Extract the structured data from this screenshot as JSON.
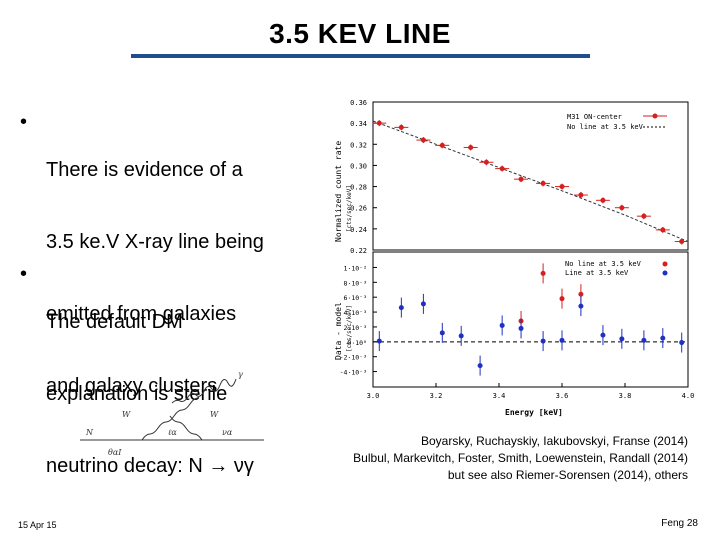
{
  "slide": {
    "title": "3.5 KEV LINE",
    "bullets": [
      {
        "marker": "•",
        "lines": [
          "There is evidence of a",
          "3.5 ke.V X-ray line being",
          "emitted from galaxies",
          "and galaxy clusters"
        ]
      },
      {
        "marker": "•",
        "lines": [
          "The default DM",
          "explanation is sterile",
          "neutrino decay: N → νγ"
        ]
      }
    ],
    "references": [
      "Boyarsky, Ruchayskiy, Iakubovskyi, Franse (2014)",
      "Bulbul, Markevitch, Foster, Smith, Loewenstein, Randall (2014)",
      "but see also Riemer-Sorensen (2014), others"
    ],
    "footer_left": "15 Apr 15",
    "footer_right": "Feng  28"
  },
  "feynman": {
    "labels": {
      "gamma": "γ",
      "w_left": "W",
      "w_right": "W",
      "n_in": "N",
      "l_mid": "ℓα",
      "nu_out": "να",
      "theta": "θαI"
    }
  },
  "chart_data": [
    {
      "type": "scatter",
      "ylabel": "Normalized count rate",
      "ylabel_unit": "[cts/sec/keV]",
      "ylim": [
        0.22,
        0.36
      ],
      "yticks": [
        "0.36",
        "0.34",
        "0.32",
        "0.30",
        "0.28",
        "0.26",
        "0.24",
        "0.22"
      ],
      "legend": [
        "M31 ON-center",
        "No line at 3.5 keV"
      ],
      "legend_placement": "top-right",
      "series": [
        {
          "name": "M31 ON-center",
          "color": "#d62020",
          "x": [
            3.02,
            3.09,
            3.16,
            3.22,
            3.31,
            3.36,
            3.41,
            3.47,
            3.54,
            3.6,
            3.66,
            3.73,
            3.79,
            3.86,
            3.92,
            3.98
          ],
          "y": [
            0.34,
            0.336,
            0.324,
            0.319,
            0.317,
            0.303,
            0.297,
            0.287,
            0.283,
            0.28,
            0.272,
            0.267,
            0.26,
            0.252,
            0.239,
            0.228
          ]
        }
      ],
      "model_curve": {
        "x": [
          3.0,
          3.2,
          3.4,
          3.6,
          3.8,
          4.0
        ],
        "y": [
          0.342,
          0.32,
          0.298,
          0.276,
          0.253,
          0.228
        ]
      }
    },
    {
      "type": "scatter",
      "xlabel": "Energy [keV]",
      "ylabel": "Data - model",
      "ylabel_unit": "[cts/sec/keV]",
      "xlim": [
        3.0,
        4.0
      ],
      "ylim": [
        -0.005,
        0.011
      ],
      "xticks": [
        "3.0",
        "3.2",
        "3.4",
        "3.6",
        "3.8",
        "4.0"
      ],
      "yticks": [
        "1·10⁻²",
        "8·10⁻³",
        "6·10⁻³",
        "4·10⁻³",
        "2·10⁻³",
        "0·10⁰",
        "-2·10⁻³",
        "-4·10⁻³"
      ],
      "legend": [
        "No line at 3.5 keV",
        "Line at 3.5 keV"
      ],
      "legend_placement": "top-right",
      "series": [
        {
          "name": "No line at 3.5 keV",
          "color": "#d62020",
          "x": [
            3.54,
            3.6,
            3.66,
            3.47
          ],
          "y": [
            0.0092,
            0.0058,
            0.0064,
            0.0028
          ]
        },
        {
          "name": "Line at 3.5 keV",
          "color": "#2030c0",
          "x": [
            3.02,
            3.09,
            3.16,
            3.22,
            3.28,
            3.34,
            3.41,
            3.47,
            3.54,
            3.6,
            3.66,
            3.73,
            3.79,
            3.86,
            3.92,
            3.98
          ],
          "y": [
            0.0001,
            0.0046,
            0.0051,
            0.0012,
            0.0008,
            -0.0032,
            0.0022,
            0.0018,
            0.0001,
            0.0002,
            0.0048,
            0.0009,
            0.0004,
            0.0002,
            0.0005,
            -0.0001
          ]
        }
      ]
    }
  ]
}
